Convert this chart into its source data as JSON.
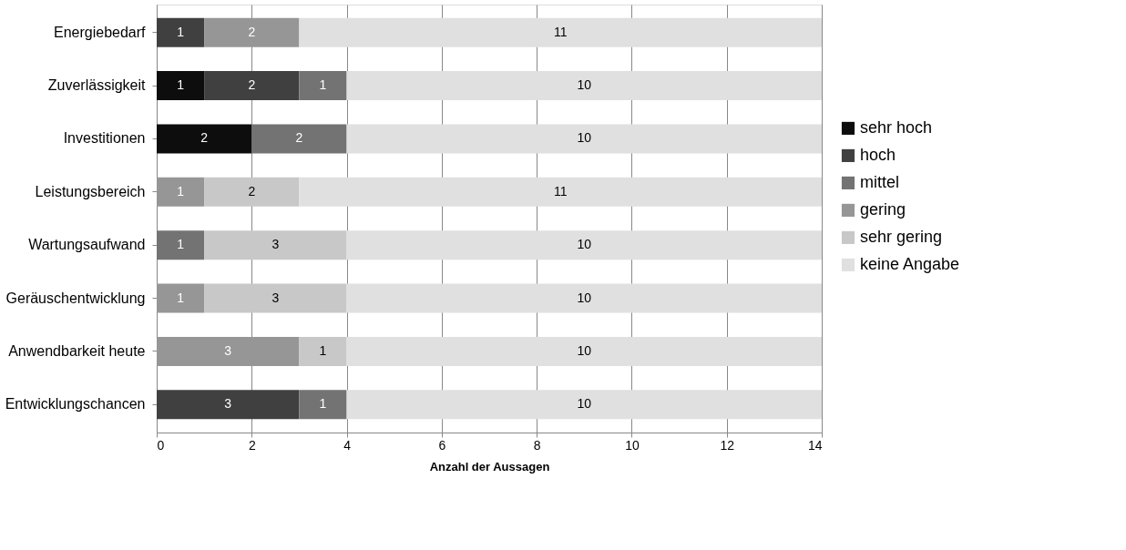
{
  "chart_data": {
    "type": "bar",
    "orientation": "horizontal",
    "stacked": true,
    "xlabel": "Anzahl der Aussagen",
    "categories": [
      "Energiebedarf",
      "Zuverlässigkeit",
      "Investitionen",
      "Leistungsbereich",
      "Wartungsaufwand",
      "Geräuschentwicklung",
      "Anwendbarkeit heute",
      "Entwicklungschancen"
    ],
    "series": [
      {
        "name": "sehr hoch",
        "color": "#0d0d0d",
        "values": [
          null,
          1,
          2,
          null,
          null,
          null,
          null,
          null
        ]
      },
      {
        "name": "hoch",
        "color": "#404040",
        "values": [
          1,
          2,
          null,
          null,
          null,
          null,
          null,
          3
        ]
      },
      {
        "name": "mittel",
        "color": "#737373",
        "values": [
          null,
          1,
          2,
          null,
          1,
          null,
          null,
          1
        ]
      },
      {
        "name": "gering",
        "color": "#969696",
        "values": [
          2,
          null,
          null,
          1,
          null,
          1,
          3,
          null
        ]
      },
      {
        "name": "sehr gering",
        "color": "#c8c8c8",
        "values": [
          null,
          null,
          null,
          2,
          3,
          3,
          1,
          null
        ]
      },
      {
        "name": "keine Angabe",
        "color": "#e0e0e0",
        "values": [
          11,
          10,
          10,
          11,
          10,
          10,
          10,
          10
        ]
      }
    ],
    "xlim": [
      0,
      14
    ],
    "xticks": [
      0,
      2,
      4,
      6,
      8,
      10,
      12,
      14
    ],
    "grid": "x",
    "legend": "right",
    "data_labels": true
  }
}
